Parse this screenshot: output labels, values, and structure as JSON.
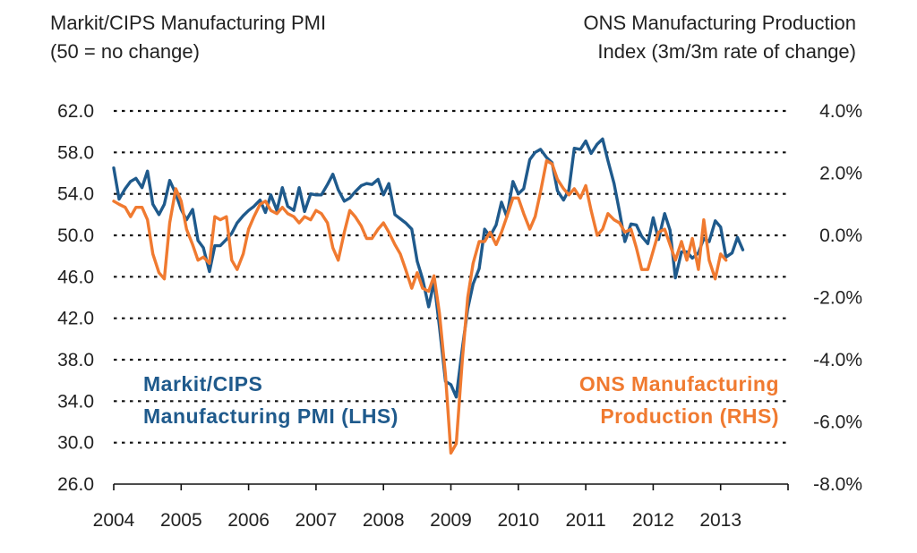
{
  "left_title": {
    "line1": "Markit/CIPS Manufacturing PMI",
    "line2": "(50 = no change)"
  },
  "right_title": {
    "line1": "ONS Manufacturing Production",
    "line2": "Index (3m/3m rate of change)"
  },
  "colors": {
    "pmi": "#1f5a8c",
    "ons": "#f07a30",
    "grid": "#111111",
    "axis": "#111111"
  },
  "chart_data": {
    "type": "line",
    "x_tick_labels": [
      "2004",
      "2005",
      "2006",
      "2007",
      "2008",
      "2009",
      "2010",
      "2011",
      "2012",
      "2013"
    ],
    "xlim": [
      2004,
      2014
    ],
    "left_axis": {
      "ylim": [
        26,
        62
      ],
      "tick_labels": [
        "26.0",
        "30.0",
        "34.0",
        "38.0",
        "42.0",
        "46.0",
        "50.0",
        "54.0",
        "58.0",
        "62.0"
      ]
    },
    "right_axis": {
      "ylim": [
        -8,
        4
      ],
      "tick_labels": [
        "-8.0%",
        "-6.0%",
        "-4.0%",
        "-2.0%",
        "0.0%",
        "2.0%",
        "4.0%"
      ]
    },
    "grid": {
      "horizontal": true,
      "style": "dotted"
    },
    "series": [
      {
        "name_lines": [
          "Markit/CIPS",
          "Manufacturing PMI (LHS)"
        ],
        "axis": "left",
        "points": [
          [
            2004.0,
            56.5
          ],
          [
            2004.08,
            53.5
          ],
          [
            2004.17,
            54.5
          ],
          [
            2004.25,
            55.2
          ],
          [
            2004.33,
            55.5
          ],
          [
            2004.42,
            54.6
          ],
          [
            2004.5,
            56.2
          ],
          [
            2004.58,
            53.0
          ],
          [
            2004.67,
            52.0
          ],
          [
            2004.75,
            53.0
          ],
          [
            2004.83,
            55.3
          ],
          [
            2004.92,
            54.0
          ],
          [
            2005.0,
            52.5
          ],
          [
            2005.08,
            51.5
          ],
          [
            2005.17,
            52.5
          ],
          [
            2005.25,
            49.5
          ],
          [
            2005.33,
            48.8
          ],
          [
            2005.42,
            46.5
          ],
          [
            2005.5,
            49.0
          ],
          [
            2005.58,
            49.0
          ],
          [
            2005.67,
            49.6
          ],
          [
            2005.75,
            50.2
          ],
          [
            2005.83,
            51.2
          ],
          [
            2005.92,
            51.9
          ],
          [
            2006.0,
            52.4
          ],
          [
            2006.08,
            52.8
          ],
          [
            2006.17,
            53.4
          ],
          [
            2006.25,
            52.2
          ],
          [
            2006.33,
            53.9
          ],
          [
            2006.42,
            52.4
          ],
          [
            2006.5,
            54.6
          ],
          [
            2006.58,
            52.8
          ],
          [
            2006.67,
            52.4
          ],
          [
            2006.75,
            54.6
          ],
          [
            2006.83,
            52.3
          ],
          [
            2006.92,
            54.0
          ],
          [
            2007.0,
            53.9
          ],
          [
            2007.08,
            53.9
          ],
          [
            2007.17,
            54.9
          ],
          [
            2007.25,
            55.9
          ],
          [
            2007.33,
            54.4
          ],
          [
            2007.42,
            53.3
          ],
          [
            2007.5,
            53.6
          ],
          [
            2007.58,
            54.2
          ],
          [
            2007.67,
            54.8
          ],
          [
            2007.75,
            55.0
          ],
          [
            2007.83,
            54.9
          ],
          [
            2007.92,
            55.4
          ],
          [
            2008.0,
            53.9
          ],
          [
            2008.08,
            55.0
          ],
          [
            2008.17,
            52.0
          ],
          [
            2008.25,
            51.6
          ],
          [
            2008.33,
            51.2
          ],
          [
            2008.42,
            50.6
          ],
          [
            2008.5,
            47.5
          ],
          [
            2008.58,
            45.8
          ],
          [
            2008.67,
            43.1
          ],
          [
            2008.75,
            45.5
          ],
          [
            2008.83,
            41.2
          ],
          [
            2008.92,
            35.9
          ],
          [
            2009.0,
            35.6
          ],
          [
            2009.08,
            34.4
          ],
          [
            2009.17,
            39.1
          ],
          [
            2009.25,
            42.9
          ],
          [
            2009.33,
            45.3
          ],
          [
            2009.42,
            46.8
          ],
          [
            2009.5,
            50.6
          ],
          [
            2009.58,
            49.9
          ],
          [
            2009.67,
            51.0
          ],
          [
            2009.75,
            53.2
          ],
          [
            2009.83,
            51.8
          ],
          [
            2009.92,
            55.2
          ],
          [
            2010.0,
            54.0
          ],
          [
            2010.08,
            54.5
          ],
          [
            2010.17,
            57.3
          ],
          [
            2010.25,
            58.0
          ],
          [
            2010.33,
            58.3
          ],
          [
            2010.42,
            57.5
          ],
          [
            2010.5,
            57.0
          ],
          [
            2010.58,
            54.3
          ],
          [
            2010.67,
            53.4
          ],
          [
            2010.75,
            54.4
          ],
          [
            2010.83,
            58.4
          ],
          [
            2010.92,
            58.3
          ],
          [
            2011.0,
            59.1
          ],
          [
            2011.08,
            57.9
          ],
          [
            2011.17,
            58.8
          ],
          [
            2011.25,
            59.3
          ],
          [
            2011.33,
            57.2
          ],
          [
            2011.42,
            55.0
          ],
          [
            2011.5,
            52.3
          ],
          [
            2011.58,
            49.4
          ],
          [
            2011.67,
            51.1
          ],
          [
            2011.75,
            51.0
          ],
          [
            2011.83,
            49.9
          ],
          [
            2011.92,
            49.2
          ],
          [
            2012.0,
            51.7
          ],
          [
            2012.08,
            49.6
          ],
          [
            2012.17,
            52.1
          ],
          [
            2012.25,
            50.5
          ],
          [
            2012.33,
            45.9
          ],
          [
            2012.42,
            48.4
          ],
          [
            2012.5,
            48.4
          ],
          [
            2012.58,
            47.8
          ],
          [
            2012.67,
            48.3
          ],
          [
            2012.75,
            49.7
          ],
          [
            2012.83,
            49.4
          ],
          [
            2012.92,
            51.4
          ],
          [
            2013.0,
            50.8
          ],
          [
            2013.08,
            47.9
          ],
          [
            2013.17,
            48.3
          ],
          [
            2013.25,
            49.8
          ],
          [
            2013.33,
            48.6
          ]
        ]
      },
      {
        "name_lines": [
          "ONS Manufacturing",
          "Production (RHS)"
        ],
        "axis": "right",
        "points": [
          [
            2004.0,
            1.1
          ],
          [
            2004.08,
            1.0
          ],
          [
            2004.17,
            0.9
          ],
          [
            2004.25,
            0.6
          ],
          [
            2004.33,
            0.9
          ],
          [
            2004.42,
            0.9
          ],
          [
            2004.5,
            0.5
          ],
          [
            2004.58,
            -0.6
          ],
          [
            2004.67,
            -1.2
          ],
          [
            2004.75,
            -1.4
          ],
          [
            2004.83,
            0.4
          ],
          [
            2004.92,
            1.5
          ],
          [
            2005.0,
            1.1
          ],
          [
            2005.08,
            0.2
          ],
          [
            2005.17,
            -0.3
          ],
          [
            2005.25,
            -0.8
          ],
          [
            2005.33,
            -0.7
          ],
          [
            2005.42,
            -0.9
          ],
          [
            2005.5,
            0.6
          ],
          [
            2005.58,
            0.5
          ],
          [
            2005.67,
            0.6
          ],
          [
            2005.75,
            -0.8
          ],
          [
            2005.83,
            -1.1
          ],
          [
            2005.92,
            -0.6
          ],
          [
            2006.0,
            0.2
          ],
          [
            2006.08,
            0.6
          ],
          [
            2006.17,
            1.0
          ],
          [
            2006.25,
            1.1
          ],
          [
            2006.33,
            0.8
          ],
          [
            2006.42,
            0.7
          ],
          [
            2006.5,
            0.9
          ],
          [
            2006.58,
            0.7
          ],
          [
            2006.67,
            0.6
          ],
          [
            2006.75,
            0.4
          ],
          [
            2006.83,
            0.6
          ],
          [
            2006.92,
            0.5
          ],
          [
            2007.0,
            0.8
          ],
          [
            2007.08,
            0.7
          ],
          [
            2007.17,
            0.4
          ],
          [
            2007.25,
            -0.4
          ],
          [
            2007.33,
            -0.8
          ],
          [
            2007.42,
            0.1
          ],
          [
            2007.5,
            0.8
          ],
          [
            2007.58,
            0.6
          ],
          [
            2007.67,
            0.3
          ],
          [
            2007.75,
            -0.1
          ],
          [
            2007.83,
            -0.1
          ],
          [
            2007.92,
            0.2
          ],
          [
            2008.0,
            0.4
          ],
          [
            2008.08,
            0.1
          ],
          [
            2008.17,
            -0.3
          ],
          [
            2008.25,
            -0.6
          ],
          [
            2008.33,
            -1.1
          ],
          [
            2008.42,
            -1.7
          ],
          [
            2008.5,
            -1.2
          ],
          [
            2008.58,
            -1.7
          ],
          [
            2008.67,
            -1.8
          ],
          [
            2008.75,
            -1.3
          ],
          [
            2008.83,
            -2.5
          ],
          [
            2008.92,
            -4.5
          ],
          [
            2009.0,
            -7.0
          ],
          [
            2009.08,
            -6.7
          ],
          [
            2009.17,
            -4.0
          ],
          [
            2009.25,
            -2.0
          ],
          [
            2009.33,
            -0.9
          ],
          [
            2009.42,
            -0.2
          ],
          [
            2009.5,
            -0.2
          ],
          [
            2009.58,
            0.1
          ],
          [
            2009.67,
            -0.3
          ],
          [
            2009.75,
            0.1
          ],
          [
            2009.83,
            0.6
          ],
          [
            2009.92,
            1.2
          ],
          [
            2010.0,
            1.2
          ],
          [
            2010.08,
            0.7
          ],
          [
            2010.17,
            0.2
          ],
          [
            2010.25,
            0.6
          ],
          [
            2010.33,
            1.4
          ],
          [
            2010.42,
            2.4
          ],
          [
            2010.5,
            2.3
          ],
          [
            2010.58,
            1.8
          ],
          [
            2010.67,
            1.5
          ],
          [
            2010.75,
            1.3
          ],
          [
            2010.83,
            1.5
          ],
          [
            2010.92,
            1.2
          ],
          [
            2011.0,
            1.6
          ],
          [
            2011.08,
            0.8
          ],
          [
            2011.17,
            0.0
          ],
          [
            2011.25,
            0.2
          ],
          [
            2011.33,
            0.7
          ],
          [
            2011.42,
            0.5
          ],
          [
            2011.5,
            0.4
          ],
          [
            2011.58,
            0.1
          ],
          [
            2011.67,
            0.2
          ],
          [
            2011.75,
            -0.4
          ],
          [
            2011.83,
            -1.1
          ],
          [
            2011.92,
            -1.1
          ],
          [
            2012.0,
            -0.5
          ],
          [
            2012.08,
            0.1
          ],
          [
            2012.17,
            0.2
          ],
          [
            2012.25,
            -0.3
          ],
          [
            2012.33,
            -0.8
          ],
          [
            2012.42,
            -0.2
          ],
          [
            2012.5,
            -0.8
          ],
          [
            2012.58,
            -0.1
          ],
          [
            2012.67,
            -1.1
          ],
          [
            2012.75,
            0.5
          ],
          [
            2012.83,
            -0.8
          ],
          [
            2012.92,
            -1.4
          ],
          [
            2013.0,
            -0.6
          ],
          [
            2013.08,
            -0.8
          ]
        ]
      }
    ]
  }
}
